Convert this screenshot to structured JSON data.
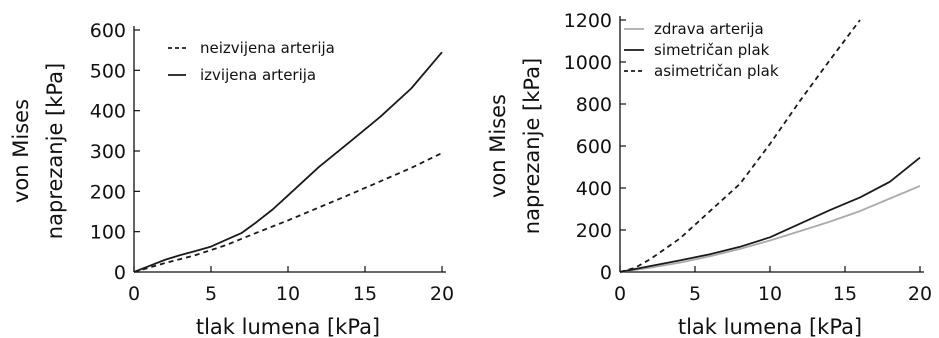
{
  "chart_data": [
    {
      "type": "line",
      "xlabel": "tlak lumena [kPa]",
      "ylabel_line1": "von Mises",
      "ylabel_line2": "naprezanje [kPa]",
      "xlim": [
        0,
        20
      ],
      "ylim": [
        0,
        600
      ],
      "xticks": [
        0,
        5,
        10,
        15,
        20
      ],
      "yticks": [
        0,
        100,
        200,
        300,
        400,
        500,
        600
      ],
      "grid": false,
      "legend": "top-left",
      "series": [
        {
          "name": "neizvijena arterija",
          "style": "dashed",
          "color": "#1a1a1a",
          "x": [
            0,
            2,
            4,
            6,
            8,
            10,
            12,
            14,
            16,
            18,
            20
          ],
          "y": [
            0,
            22,
            42,
            67,
            98,
            128,
            160,
            192,
            225,
            258,
            295
          ]
        },
        {
          "name": "izvijena arterija",
          "style": "solid",
          "color": "#1a1a1a",
          "x": [
            0,
            1,
            2,
            3,
            4,
            5,
            6,
            7,
            8,
            9,
            10,
            12,
            14,
            16,
            18,
            20
          ],
          "y": [
            0,
            15,
            30,
            42,
            52,
            63,
            80,
            97,
            125,
            155,
            190,
            260,
            322,
            385,
            455,
            545
          ]
        }
      ]
    },
    {
      "type": "line",
      "xlabel": "tlak lumena [kPa]",
      "ylabel_line1": "von Mises",
      "ylabel_line2": "naprezanje [kPa]",
      "xlim": [
        0,
        20
      ],
      "ylim": [
        0,
        1200
      ],
      "xticks": [
        0,
        5,
        10,
        15,
        20
      ],
      "yticks": [
        0,
        200,
        400,
        600,
        800,
        1000,
        1200
      ],
      "grid": false,
      "legend": "top-left",
      "series": [
        {
          "name": "zdrava arterija",
          "style": "solid",
          "color": "#aaaaaa",
          "x": [
            0,
            2,
            4,
            6,
            8,
            10,
            12,
            14,
            16,
            18,
            20
          ],
          "y": [
            0,
            20,
            45,
            75,
            110,
            150,
            195,
            240,
            290,
            350,
            410
          ]
        },
        {
          "name": "simetričan plak",
          "style": "solid",
          "color": "#1a1a1a",
          "x": [
            0,
            2,
            4,
            6,
            8,
            10,
            12,
            14,
            16,
            18,
            20
          ],
          "y": [
            0,
            28,
            55,
            85,
            120,
            165,
            230,
            295,
            355,
            430,
            545
          ]
        },
        {
          "name": "asimetričan plak",
          "style": "dashed",
          "color": "#1a1a1a",
          "x": [
            0,
            1,
            2,
            4,
            6,
            8,
            10,
            12,
            14,
            16
          ],
          "y": [
            0,
            20,
            60,
            160,
            290,
            420,
            610,
            815,
            1010,
            1200
          ]
        }
      ]
    }
  ]
}
